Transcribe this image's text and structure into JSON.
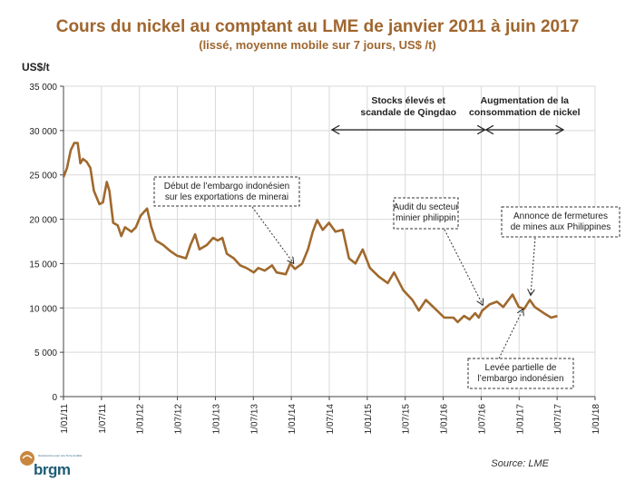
{
  "chart_data": {
    "type": "line",
    "title": "Cours du nickel au comptant  au LME de janvier 2011 à juin 2017",
    "subtitle": "(lissé, moyenne mobile sur 7 jours, US$ /t)",
    "ylabel": "US$/t",
    "xlabel": "",
    "ylim": [
      0,
      35000
    ],
    "xlim": [
      "2011-01-01",
      "2018-01-01"
    ],
    "grid": true,
    "line_color": "#a0692d",
    "y_ticks": [
      "0",
      "5 000",
      "10 000",
      "15 000",
      "20 000",
      "25 000",
      "30 000",
      "35 000"
    ],
    "x_ticks": [
      "1/01/11",
      "1/07/11",
      "1/01/12",
      "1/07/12",
      "1/01/13",
      "1/07/13",
      "1/01/14",
      "1/07/14",
      "1/01/15",
      "1/07/15",
      "1/01/16",
      "1/07/16",
      "1/01/17",
      "1/07/17",
      "1/01/18"
    ],
    "series": [
      {
        "points": [
          [
            "2011-01-01",
            24750
          ],
          [
            "2011-01-18",
            25800
          ],
          [
            "2011-02-05",
            27800
          ],
          [
            "2011-02-22",
            28600
          ],
          [
            "2011-03-10",
            28600
          ],
          [
            "2011-03-23",
            26300
          ],
          [
            "2011-04-05",
            26800
          ],
          [
            "2011-04-22",
            26500
          ],
          [
            "2011-05-10",
            25800
          ],
          [
            "2011-05-27",
            23200
          ],
          [
            "2011-06-23",
            21700
          ],
          [
            "2011-07-10",
            21900
          ],
          [
            "2011-07-28",
            24200
          ],
          [
            "2011-08-10",
            23200
          ],
          [
            "2011-08-28",
            19600
          ],
          [
            "2011-09-19",
            19300
          ],
          [
            "2011-10-06",
            18100
          ],
          [
            "2011-10-24",
            19100
          ],
          [
            "2011-11-24",
            18600
          ],
          [
            "2011-12-15",
            19100
          ],
          [
            "2012-01-07",
            20400
          ],
          [
            "2012-02-07",
            21200
          ],
          [
            "2012-02-28",
            19100
          ],
          [
            "2012-03-20",
            17600
          ],
          [
            "2012-04-24",
            17100
          ],
          [
            "2012-05-29",
            16400
          ],
          [
            "2012-06-29",
            15900
          ],
          [
            "2012-08-12",
            15600
          ],
          [
            "2012-09-03",
            17100
          ],
          [
            "2012-09-25",
            18300
          ],
          [
            "2012-10-16",
            16600
          ],
          [
            "2012-11-21",
            17100
          ],
          [
            "2012-12-21",
            17900
          ],
          [
            "2013-01-12",
            17600
          ],
          [
            "2013-02-03",
            17900
          ],
          [
            "2013-02-25",
            16100
          ],
          [
            "2013-03-30",
            15600
          ],
          [
            "2013-04-30",
            14800
          ],
          [
            "2013-05-30",
            14500
          ],
          [
            "2013-07-04",
            14000
          ],
          [
            "2013-07-26",
            14500
          ],
          [
            "2013-08-26",
            14200
          ],
          [
            "2013-09-30",
            14800
          ],
          [
            "2013-10-22",
            14000
          ],
          [
            "2013-12-05",
            13800
          ],
          [
            "2013-12-27",
            15000
          ],
          [
            "2014-01-18",
            14400
          ],
          [
            "2014-02-22",
            15000
          ],
          [
            "2014-03-22",
            16600
          ],
          [
            "2014-04-14",
            18600
          ],
          [
            "2014-05-05",
            19900
          ],
          [
            "2014-06-01",
            18800
          ],
          [
            "2014-07-01",
            19600
          ],
          [
            "2014-08-01",
            18600
          ],
          [
            "2014-09-05",
            18800
          ],
          [
            "2014-10-05",
            15600
          ],
          [
            "2014-11-05",
            15000
          ],
          [
            "2014-12-10",
            16600
          ],
          [
            "2015-01-14",
            14500
          ],
          [
            "2015-02-27",
            13500
          ],
          [
            "2015-04-10",
            12800
          ],
          [
            "2015-05-10",
            14000
          ],
          [
            "2015-06-23",
            12000
          ],
          [
            "2015-08-06",
            10900
          ],
          [
            "2015-09-06",
            9700
          ],
          [
            "2015-10-10",
            10900
          ],
          [
            "2015-11-24",
            9900
          ],
          [
            "2016-01-07",
            8900
          ],
          [
            "2016-02-20",
            8900
          ],
          [
            "2016-03-11",
            8400
          ],
          [
            "2016-04-11",
            9100
          ],
          [
            "2016-05-07",
            8700
          ],
          [
            "2016-06-03",
            9400
          ],
          [
            "2016-06-20",
            8900
          ],
          [
            "2016-07-07",
            9700
          ],
          [
            "2016-08-12",
            10400
          ],
          [
            "2016-09-16",
            10700
          ],
          [
            "2016-10-16",
            10100
          ],
          [
            "2016-11-30",
            11500
          ],
          [
            "2016-12-30",
            10100
          ],
          [
            "2017-01-25",
            9900
          ],
          [
            "2017-02-21",
            10900
          ],
          [
            "2017-03-17",
            10100
          ],
          [
            "2017-04-30",
            9400
          ],
          [
            "2017-06-04",
            8900
          ],
          [
            "2017-07-04",
            9100
          ]
        ]
      }
    ],
    "periods": [
      {
        "label_1": "Stocks élevés et",
        "label_2": "scandale de Qingdao",
        "from": "2014-07-15",
        "to": "2016-07-20"
      },
      {
        "label_1": "Augmentation  de la",
        "label_2": "consommation de nickel",
        "from": "2016-07-25",
        "to": "2017-08-01"
      }
    ],
    "annotations": [
      {
        "label_1": "Début de l’embargo indonésien",
        "label_2": "sur les exportations de minerai",
        "date": "2014-01-12",
        "value": 14400
      },
      {
        "label_1": "Audit du secteur",
        "label_2": "minier philippin",
        "date": "2016-07-10",
        "value": 9700
      },
      {
        "label_1": "Annonce de fermetures",
        "label_2": "de mines aux Philippines",
        "date": "2017-02-25",
        "value": 10800
      },
      {
        "label_1": "Levée partielle de",
        "label_2": "l’embargo indonésien",
        "date": "2017-01-20",
        "value": 10500
      }
    ],
    "source": "Source: LME"
  },
  "logo": {
    "text": "brgm",
    "tagline": "Géosciences pour une Terre durable"
  }
}
